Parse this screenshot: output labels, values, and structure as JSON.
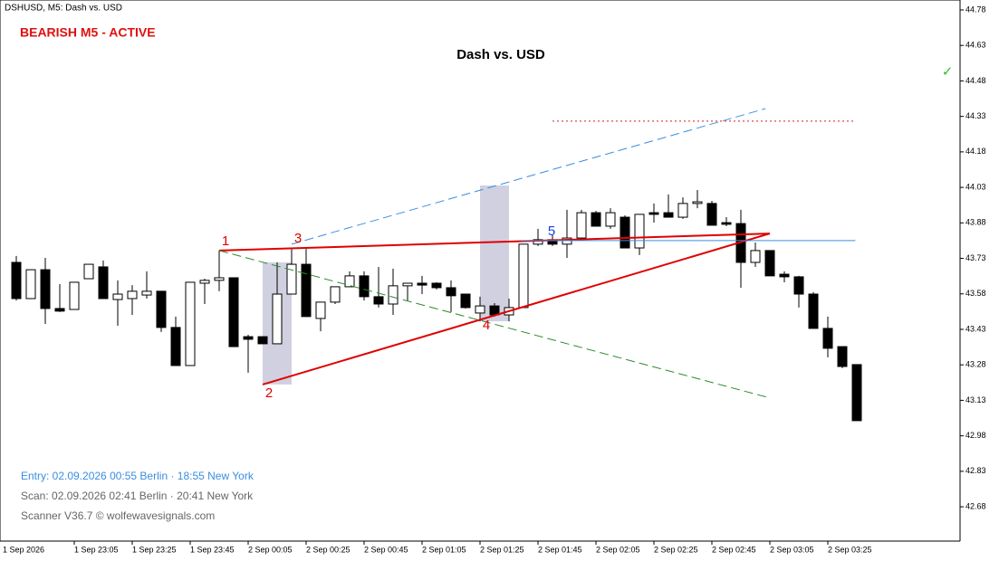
{
  "chart_data": {
    "type": "candlestick",
    "symbol_label": "DSHUSD, M5:  Dash vs. USD",
    "status": "BEARISH M5 - ACTIVE",
    "title": "Dash vs. USD",
    "check_mark": "✓",
    "info_lines": [
      "Entry: 02.09.2026  00:55 Berlin · 18:55 New York",
      "Scan:  02.09.2026  02:41 Berlin · 20:41 New York",
      "Scanner V36.7  © wolfewavesignals.com"
    ],
    "x_start_label": "1 Sep 2026",
    "categories": [
      null,
      null,
      null,
      null,
      "1 Sep 23:05",
      null,
      null,
      null,
      "1 Sep 23:25",
      null,
      null,
      null,
      "1 Sep 23:45",
      null,
      null,
      null,
      "2 Sep 00:05",
      null,
      null,
      null,
      "2 Sep 00:25",
      null,
      null,
      null,
      "2 Sep 00:45",
      null,
      null,
      null,
      "2 Sep 01:05",
      null,
      null,
      null,
      "2 Sep 01:25",
      null,
      null,
      null,
      "2 Sep 01:45",
      null,
      null,
      null,
      "2 Sep 02:05",
      null,
      null,
      null,
      "2 Sep 02:25",
      null,
      null,
      null,
      "2 Sep 02:45",
      null,
      null,
      null,
      "2 Sep 03:05",
      null,
      null,
      null,
      "2 Sep 03:25",
      null,
      null
    ],
    "open": [
      43.713,
      43.56,
      43.682,
      43.518,
      43.514,
      43.644,
      43.694,
      43.556,
      43.56,
      43.575,
      43.591,
      43.438,
      43.277,
      43.625,
      43.637,
      43.648,
      43.399,
      43.399,
      43.369,
      43.579,
      43.705,
      43.476,
      43.545,
      43.61,
      43.656,
      43.568,
      43.537,
      43.614,
      43.625,
      43.625,
      43.606,
      43.579,
      43.499,
      43.529,
      43.491,
      43.522,
      43.79,
      43.809,
      43.79,
      43.816,
      43.923,
      43.866,
      43.904,
      43.774,
      43.923,
      43.923,
      43.904,
      43.962,
      43.962,
      43.881,
      43.877,
      43.713,
      43.763,
      43.663,
      43.652,
      43.579,
      43.434,
      43.357,
      43.281
    ],
    "high": [
      43.74,
      43.682,
      43.732,
      43.621,
      43.629,
      43.705,
      43.721,
      43.637,
      43.617,
      43.675,
      43.591,
      43.484,
      43.629,
      43.644,
      43.763,
      43.648,
      43.407,
      43.399,
      43.713,
      43.77,
      43.77,
      43.545,
      43.61,
      43.675,
      43.675,
      43.694,
      43.686,
      43.625,
      43.656,
      43.629,
      43.637,
      43.579,
      43.568,
      43.541,
      43.56,
      43.79,
      43.855,
      43.828,
      43.935,
      43.935,
      43.931,
      43.942,
      43.912,
      43.916,
      43.962,
      44.0,
      43.988,
      44.019,
      43.973,
      43.904,
      43.935,
      43.797,
      43.763,
      43.675,
      43.656,
      43.587,
      43.484,
      43.357,
      43.281
    ],
    "low": [
      43.552,
      43.56,
      43.453,
      43.503,
      43.514,
      43.644,
      43.56,
      43.445,
      43.491,
      43.56,
      43.419,
      43.277,
      43.277,
      43.537,
      43.591,
      43.357,
      43.247,
      43.369,
      43.369,
      43.579,
      43.484,
      43.422,
      43.537,
      43.61,
      43.552,
      43.522,
      43.491,
      43.552,
      43.579,
      43.598,
      43.503,
      43.518,
      43.464,
      43.484,
      43.464,
      43.522,
      43.782,
      43.782,
      43.732,
      43.809,
      43.866,
      43.855,
      43.774,
      43.744,
      43.881,
      43.904,
      43.897,
      43.942,
      43.87,
      43.866,
      43.606,
      43.694,
      43.656,
      43.629,
      43.522,
      43.434,
      43.312,
      43.266,
      43.044
    ],
    "close": [
      43.56,
      43.682,
      43.518,
      43.507,
      43.629,
      43.705,
      43.56,
      43.579,
      43.591,
      43.591,
      43.438,
      43.277,
      43.629,
      43.637,
      43.648,
      43.357,
      43.388,
      43.369,
      43.579,
      43.705,
      43.484,
      43.545,
      43.61,
      43.656,
      43.568,
      43.537,
      43.614,
      43.625,
      43.617,
      43.606,
      43.572,
      43.522,
      43.529,
      43.491,
      43.522,
      43.79,
      43.809,
      43.79,
      43.816,
      43.923,
      43.866,
      43.923,
      43.774,
      43.916,
      43.916,
      43.904,
      43.962,
      43.969,
      43.87,
      43.874,
      43.713,
      43.763,
      43.656,
      43.652,
      43.579,
      43.434,
      43.35,
      43.273,
      43.044
    ],
    "up_color": "#ffffff",
    "down_color": "#000000",
    "ylim": [
      42.535,
      44.822
    ],
    "yticks": [
      44.78,
      44.63,
      44.48,
      44.33,
      44.18,
      44.03,
      43.88,
      43.73,
      43.58,
      43.43,
      43.28,
      43.13,
      42.98,
      42.83,
      42.68
    ],
    "grid": false,
    "zones": [
      {
        "x": [
          17,
          19
        ],
        "y": [
          43.197,
          43.713
        ],
        "color": "#d0d0e0"
      },
      {
        "x": [
          32,
          34
        ],
        "y": [
          44.038,
          43.464
        ],
        "color": "#d0d0e0"
      }
    ],
    "lines": [
      {
        "x": [
          14,
          52
        ],
        "y": [
          43.763,
          43.835
        ],
        "color": "#e00000",
        "style": "solid",
        "width": 2
      },
      {
        "x": [
          17,
          52
        ],
        "y": [
          43.197,
          43.835
        ],
        "color": "#e00000",
        "style": "solid",
        "width": 2
      },
      {
        "x": [
          14,
          52
        ],
        "y": [
          43.763,
          43.14
        ],
        "color": "#2e8b2e",
        "style": "dashed",
        "width": 1
      },
      {
        "x": [
          19,
          51.7
        ],
        "y": [
          43.79,
          44.363
        ],
        "color": "#3a8ee0",
        "style": "dashed",
        "width": 1
      },
      {
        "x": [
          37,
          57.8
        ],
        "y": [
          44.31,
          44.31
        ],
        "color": "#d02020",
        "style": "dotted",
        "width": 1
      },
      {
        "x": [
          34.8,
          57.9
        ],
        "y": [
          43.805,
          43.805
        ],
        "color": "#3a8ee0",
        "style": "solid",
        "width": 1
      }
    ],
    "wave_points": [
      {
        "label": "1",
        "x": 14,
        "y": 43.763,
        "position": "above",
        "color": "#e00000"
      },
      {
        "label": "2",
        "x": 17,
        "y": 43.197,
        "position": "below",
        "color": "#e00000"
      },
      {
        "label": "3",
        "x": 19,
        "y": 43.774,
        "position": "above",
        "color": "#e00000"
      },
      {
        "label": "4",
        "x": 32,
        "y": 43.484,
        "position": "below",
        "color": "#e00000"
      },
      {
        "label": "5",
        "x": 36.5,
        "y": 43.805,
        "position": "above",
        "color": "#2040e0"
      }
    ]
  }
}
